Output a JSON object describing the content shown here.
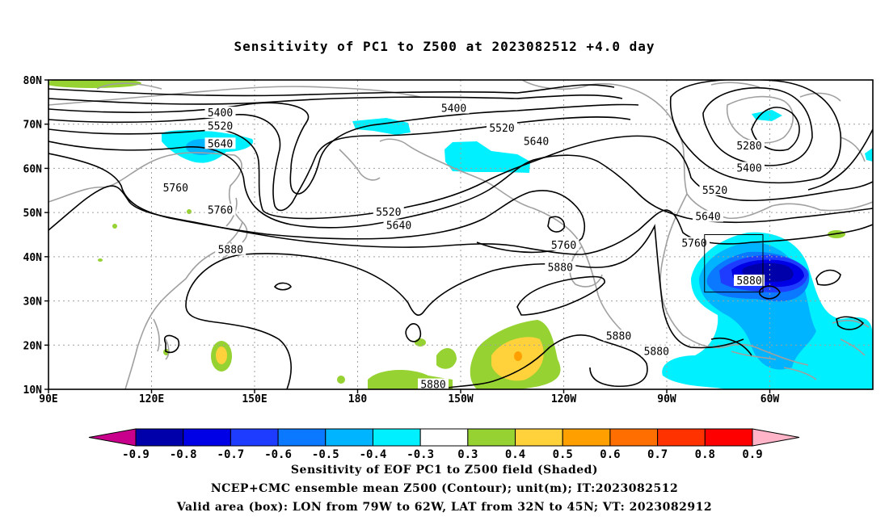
{
  "title": "Sensitivity of PC1 to Z500 at 2023082512 +4.0 day",
  "lat_labels": [
    "80N",
    "70N",
    "60N",
    "50N",
    "40N",
    "30N",
    "20N",
    "10N"
  ],
  "lon_labels": [
    "90E",
    "120E",
    "150E",
    "180",
    "150W",
    "120W",
    "90W",
    "60W"
  ],
  "contour_labels": [
    {
      "text": "5400",
      "lon": 140,
      "lat": 72.5
    },
    {
      "text": "5520",
      "lon": 140,
      "lat": 69.5
    },
    {
      "text": "5640",
      "lon": 140,
      "lat": 65.5
    },
    {
      "text": "5760",
      "lon": 127,
      "lat": 55.5
    },
    {
      "text": "5760",
      "lon": 140,
      "lat": 50.5
    },
    {
      "text": "5880",
      "lon": 143,
      "lat": 41.5
    },
    {
      "text": "5400",
      "lon": -152,
      "lat": 73.5
    },
    {
      "text": "5520",
      "lon": -138,
      "lat": 69.0
    },
    {
      "text": "5640",
      "lon": -128,
      "lat": 66.0
    },
    {
      "text": "5520",
      "lon": -171,
      "lat": 50.0
    },
    {
      "text": "5640",
      "lon": -168,
      "lat": 47.0
    },
    {
      "text": "5760",
      "lon": -120,
      "lat": 42.5
    },
    {
      "text": "5880",
      "lon": -121,
      "lat": 37.5
    },
    {
      "text": "5880",
      "lon": -104,
      "lat": 22.0
    },
    {
      "text": "5880",
      "lon": -93,
      "lat": 18.5
    },
    {
      "text": "5880",
      "lon": -158,
      "lat": 11.0
    },
    {
      "text": "5280",
      "lon": -66,
      "lat": 65.0
    },
    {
      "text": "5400",
      "lon": -66,
      "lat": 60.0
    },
    {
      "text": "5520",
      "lon": -76,
      "lat": 55.0
    },
    {
      "text": "5640",
      "lon": -78,
      "lat": 49.0
    },
    {
      "text": "5760",
      "lon": -82,
      "lat": 43.0
    },
    {
      "text": "5880",
      "lon": -66,
      "lat": 34.5
    }
  ],
  "colorbar": {
    "labels": [
      "-0.9",
      "-0.8",
      "-0.7",
      "-0.6",
      "-0.5",
      "-0.4",
      "-0.3",
      "0.3",
      "0.4",
      "0.5",
      "0.6",
      "0.7",
      "0.8",
      "0.9"
    ],
    "colors": [
      "#0000aa",
      "#0000e6",
      "#1e3cff",
      "#0a78ff",
      "#00b4ff",
      "#00f0ff",
      "#ffffff",
      "#96d232",
      "#ffd23c",
      "#ffa000",
      "#ff6e00",
      "#ff3200",
      "#ff0000"
    ],
    "low_end_color": "#c8008c",
    "high_end_color": "#ffb4c8"
  },
  "valid_box": {
    "lon_w": 79,
    "lon_e": 62,
    "lat_s": 32,
    "lat_n": 45
  },
  "captions": {
    "line1": "Sensitivity of EOF PC1 to Z500 field (Shaded)",
    "line2": "NCEP+CMC ensemble mean Z500 (Contour); unit(m); IT:2023082512",
    "line3": "Valid area (box): LON from 79W to 62W, LAT from 32N to 45N; VT: 2023082912"
  }
}
